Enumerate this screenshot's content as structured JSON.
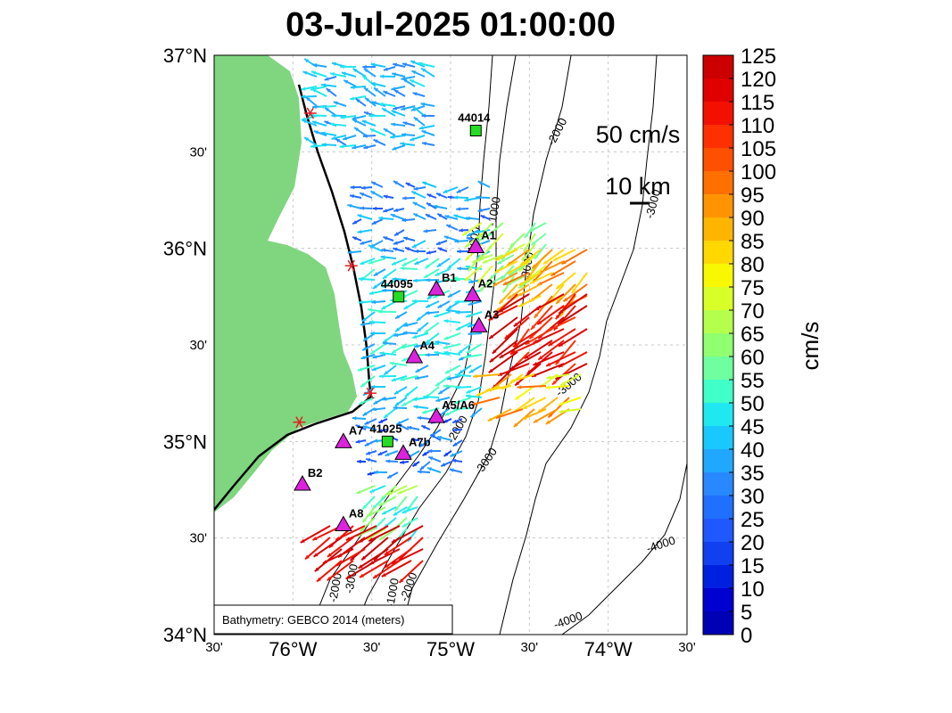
{
  "title": "03-Jul-2025 01:00:00",
  "map": {
    "lat_ticks": [
      "37°N",
      "30'",
      "36°N",
      "30'",
      "35°N",
      "30'",
      "34°N"
    ],
    "lon_ticks": [
      "30'",
      "76°W",
      "30'",
      "75°W",
      "30'",
      "74°W",
      "30'"
    ],
    "lon_range": [
      -76.5,
      -73.5
    ],
    "lat_range": [
      34.0,
      37.0
    ],
    "land_color": "#7fd67f",
    "credit": "Bathymetry: GEBCO 2014 (meters)",
    "scale_speed": "50 cm/s",
    "scale_distance": "10 km",
    "contour_labels": [
      "-2000",
      "-1000",
      "-3000",
      "-1000",
      "-3000",
      "-4000",
      "-4000",
      "-2000",
      "-3000",
      "-2000",
      "-3000",
      "-1000",
      "-2000",
      "-3000"
    ],
    "buoys": [
      {
        "id": "44014",
        "lon": -74.84,
        "lat": 36.61,
        "color": "#22dd22"
      },
      {
        "id": "44095",
        "lon": -75.33,
        "lat": 35.75,
        "color": "#22dd22"
      },
      {
        "id": "41025",
        "lon": -75.4,
        "lat": 35.0,
        "color": "#22dd22"
      }
    ],
    "sites": [
      {
        "id": "A1",
        "lon": -74.84,
        "lat": 36.01,
        "color": "#dd22dd"
      },
      {
        "id": "B1",
        "lon": -75.09,
        "lat": 35.79,
        "color": "#dd22dd"
      },
      {
        "id": "A2",
        "lon": -74.86,
        "lat": 35.76,
        "color": "#dd22dd"
      },
      {
        "id": "A3",
        "lon": -74.82,
        "lat": 35.6,
        "color": "#dd22dd"
      },
      {
        "id": "A4",
        "lon": -75.23,
        "lat": 35.44,
        "color": "#dd22dd"
      },
      {
        "id": "A5/A6",
        "lon": -75.09,
        "lat": 35.13,
        "color": "#dd22dd"
      },
      {
        "id": "A7",
        "lon": -75.68,
        "lat": 35.0,
        "color": "#dd22dd"
      },
      {
        "id": "A7b",
        "lon": -75.3,
        "lat": 34.94,
        "color": "#dd22dd"
      },
      {
        "id": "B2",
        "lon": -75.94,
        "lat": 34.78,
        "color": "#dd22dd"
      },
      {
        "id": "A8",
        "lon": -75.68,
        "lat": 34.57,
        "color": "#dd22dd"
      }
    ],
    "shore_markers": [
      {
        "lon": -75.89,
        "lat": 36.7
      },
      {
        "lon": -75.63,
        "lat": 35.91
      },
      {
        "lon": -75.51,
        "lat": 35.25
      },
      {
        "lon": -75.96,
        "lat": 35.1
      }
    ]
  },
  "colorbar": {
    "unit": "cm/s",
    "labels": [
      "125",
      "120",
      "115",
      "110",
      "105",
      "100",
      "95",
      "90",
      "85",
      "80",
      "75",
      "70",
      "65",
      "60",
      "55",
      "50",
      "45",
      "40",
      "35",
      "30",
      "25",
      "20",
      "15",
      "10",
      "5",
      "0"
    ],
    "colors": [
      "#cc0000",
      "#e00000",
      "#f41000",
      "#ff3000",
      "#ff5000",
      "#ff7000",
      "#ff9400",
      "#ffb400",
      "#ffd800",
      "#f8f800",
      "#d8ff28",
      "#b4ff4c",
      "#90ff70",
      "#70ffa0",
      "#40ffc8",
      "#20e8f0",
      "#18c8ff",
      "#20a8ff",
      "#2888ff",
      "#2070ff",
      "#2058ff",
      "#1040f0",
      "#0020e0",
      "#0000d0",
      "#0000b4"
    ]
  }
}
